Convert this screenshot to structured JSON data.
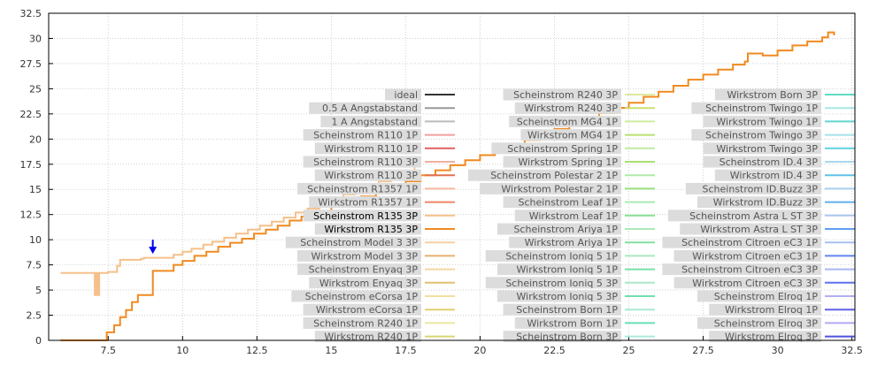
{
  "chart_data": {
    "type": "line",
    "title": "",
    "xlabel": "",
    "ylabel": "",
    "xlim": [
      5.5,
      32.6
    ],
    "ylim": [
      0,
      32.5
    ],
    "x_ticks": [
      7.5,
      10,
      12.5,
      15,
      17.5,
      20,
      22.5,
      25,
      27.5,
      30,
      32.5
    ],
    "x_tick_labels": [
      "7.5",
      "10",
      "12.5",
      "15",
      "17.5",
      "20",
      "22.5",
      "25",
      "27.5",
      "30",
      "32.5"
    ],
    "y_ticks": [
      0,
      2.5,
      5,
      7.5,
      10,
      12.5,
      15,
      17.5,
      20,
      22.5,
      25,
      27.5,
      30,
      32.5
    ],
    "y_tick_labels": [
      "0",
      "2.5",
      "5",
      "7.5",
      "10",
      "12.5",
      "15",
      "17.5",
      "20",
      "22.5",
      "25",
      "27.5",
      "30",
      "32.5"
    ],
    "grid": true,
    "legend_position": "right, three columns",
    "legend_columns": [
      [
        {
          "label": "ideal",
          "color": "#333333"
        },
        {
          "label": "0.5 A Angstabstand",
          "color": "#999999"
        },
        {
          "label": "1 A Angstabstand",
          "color": "#bbbbbb"
        },
        {
          "label": "Scheinstrom R110 1P",
          "color": "#f0a0a0"
        },
        {
          "label": "Wirkstrom R110 1P",
          "color": "#e06060"
        },
        {
          "label": "Scheinstrom R110 3P",
          "color": "#f0b0a0"
        },
        {
          "label": "Wirkstrom R110 3P",
          "color": "#e07050"
        },
        {
          "label": "Scheinstrom R1357 1P",
          "color": "#f5b8a0"
        },
        {
          "label": "Wirkstrom R1357 1P",
          "color": "#ee8866"
        },
        {
          "label": "Scheinstrom R135 3P",
          "color": "#f5c08a"
        },
        {
          "label": "Wirkstrom R135 3P",
          "color": "#f08a20"
        },
        {
          "label": "Scheinstrom Model 3 3P",
          "color": "#f5d0a0"
        },
        {
          "label": "Wirkstrom Model 3 3P",
          "color": "#e8b070"
        },
        {
          "label": "Scheinstrom Enyaq 3P",
          "color": "#f0d8a0"
        },
        {
          "label": "Wirkstrom Enyaq 3P",
          "color": "#e0c070"
        },
        {
          "label": "Scheinstrom eCorsa 1P",
          "color": "#f0e0a0"
        },
        {
          "label": "Wirkstrom eCorsa 1P",
          "color": "#e0d070"
        },
        {
          "label": "Scheinstrom R240 1P",
          "color": "#e8e8a0"
        },
        {
          "label": "Wirkstrom R240 1P",
          "color": "#d8d870"
        }
      ],
      [
        {
          "label": "Scheinstrom R240 3P",
          "color": "#e0eaa0"
        },
        {
          "label": "Wirkstrom R240 3P",
          "color": "#cce070"
        },
        {
          "label": "Scheinstrom MG4 1P",
          "color": "#d0eaa0"
        },
        {
          "label": "Wirkstrom MG4 1P",
          "color": "#b8e070"
        },
        {
          "label": "Scheinstrom Spring 1P",
          "color": "#c0eaa0"
        },
        {
          "label": "Wirkstrom Spring 1P",
          "color": "#a8e070"
        },
        {
          "label": "Scheinstrom Polestar 2 1P",
          "color": "#b0eaa8"
        },
        {
          "label": "Wirkstrom Polestar 2 1P",
          "color": "#98e080"
        },
        {
          "label": "Scheinstrom Leaf 1P",
          "color": "#a8eab0"
        },
        {
          "label": "Wirkstrom Leaf 1P",
          "color": "#88e090"
        },
        {
          "label": "Scheinstrom Ariya 1P",
          "color": "#a8eab8"
        },
        {
          "label": "Wirkstrom Ariya 1P",
          "color": "#80e0a0"
        },
        {
          "label": "Scheinstrom Ioniq 5 1P",
          "color": "#a8eac0"
        },
        {
          "label": "Wirkstrom Ioniq 5 1P",
          "color": "#78e0a8"
        },
        {
          "label": "Scheinstrom Ioniq 5 3P",
          "color": "#a8eac8"
        },
        {
          "label": "Wirkstrom Ioniq 5 3P",
          "color": "#70e0b0"
        },
        {
          "label": "Scheinstrom Born 1P",
          "color": "#a8ead0"
        },
        {
          "label": "Wirkstrom Born 1P",
          "color": "#68e0b8"
        },
        {
          "label": "Scheinstrom Born 3P",
          "color": "#a8eada"
        }
      ],
      [
        {
          "label": "Wirkstrom Born 3P",
          "color": "#60dcc0"
        },
        {
          "label": "Scheinstrom Twingo 1P",
          "color": "#a8e8e0"
        },
        {
          "label": "Wirkstrom Twingo 1P",
          "color": "#60d8d0"
        },
        {
          "label": "Scheinstrom Twingo 3P",
          "color": "#a8e0e8"
        },
        {
          "label": "Wirkstrom Twingo 3P",
          "color": "#60d0e0"
        },
        {
          "label": "Scheinstrom ID.4 3P",
          "color": "#a8d8ee"
        },
        {
          "label": "Wirkstrom ID.4 3P",
          "color": "#60c0e8"
        },
        {
          "label": "Scheinstrom ID.Buzz 3P",
          "color": "#a8d0f0"
        },
        {
          "label": "Wirkstrom ID.Buzz 3P",
          "color": "#60b0ea"
        },
        {
          "label": "Scheinstrom Astra L ST 3P",
          "color": "#a8c8f0"
        },
        {
          "label": "Wirkstrom Astra L ST 3P",
          "color": "#609ef0"
        },
        {
          "label": "Scheinstrom Citroen eC3 1P",
          "color": "#a8c0f0"
        },
        {
          "label": "Wirkstrom Citroen eC3 1P",
          "color": "#6088f0"
        },
        {
          "label": "Scheinstrom Citroen eC3 3P",
          "color": "#a8b8f0"
        },
        {
          "label": "Wirkstrom Citroen eC3 3P",
          "color": "#6070f0"
        },
        {
          "label": "Scheinstrom Elroq 1P",
          "color": "#b0b0f0"
        },
        {
          "label": "Wirkstrom Elroq 1P",
          "color": "#6060e8"
        },
        {
          "label": "Scheinstrom Elroq 3P",
          "color": "#b8a8f0"
        },
        {
          "label": "Wirkstrom Elroq 3P",
          "color": "#5050e0"
        }
      ]
    ],
    "highlighted_series": [
      "Scheinstrom R135 3P",
      "Wirkstrom R135 3P"
    ],
    "series": [
      {
        "name": "Scheinstrom R135 3P",
        "color": "#f5c08a",
        "x": [
          5.9,
          6.8,
          7.0,
          7.05,
          7.1,
          7.15,
          7.2,
          7.5,
          7.8,
          7.9,
          8.6,
          8.7,
          9.2,
          9.7,
          10.0,
          10.3,
          10.7,
          11.0,
          11.4,
          11.8,
          12.2,
          12.6,
          13.0,
          13.4,
          13.8,
          14.2,
          14.6,
          15.0,
          15.4,
          15.8,
          16.2,
          16.6,
          17.0,
          17.4,
          17.8
        ],
        "y": [
          6.7,
          6.7,
          6.7,
          4.5,
          6.7,
          4.5,
          6.7,
          6.8,
          7.4,
          8.0,
          8.1,
          8.2,
          8.2,
          8.5,
          8.8,
          9.1,
          9.5,
          9.8,
          10.2,
          10.6,
          11.0,
          11.4,
          11.8,
          12.2,
          12.7,
          13.1,
          13.6,
          14.0,
          14.5,
          14.9,
          15.4,
          15.8,
          16.3,
          16.7,
          17.2
        ]
      },
      {
        "name": "Wirkstrom R135 3P",
        "color": "#f08a20",
        "x": [
          5.9,
          7.4,
          7.45,
          7.7,
          7.9,
          8.1,
          8.3,
          8.5,
          8.9,
          9.0,
          9.5,
          9.7,
          10.0,
          10.4,
          10.8,
          11.2,
          11.6,
          12.0,
          12.4,
          12.8,
          13.2,
          13.6,
          14.0,
          14.5,
          15.0,
          15.5,
          16.0,
          16.5,
          17.0,
          17.5,
          18.0,
          18.5,
          19.0,
          19.5,
          20.0,
          20.5,
          21.0,
          21.5,
          22.0,
          22.5,
          23.0,
          23.5,
          24.0,
          24.5,
          25.0,
          25.5,
          26.0,
          26.5,
          27.0,
          27.5,
          28.0,
          28.5,
          28.9,
          29.0,
          29.5,
          30.0,
          30.5,
          31.0,
          31.5,
          31.7,
          31.9
        ],
        "y": [
          0,
          0,
          0.8,
          1.5,
          2.3,
          3.0,
          3.8,
          4.5,
          4.5,
          6.9,
          6.9,
          7.5,
          7.9,
          8.4,
          8.8,
          9.3,
          9.7,
          10.1,
          10.6,
          11.0,
          11.4,
          11.9,
          12.3,
          12.8,
          13.3,
          13.8,
          14.3,
          14.8,
          15.3,
          15.8,
          16.4,
          16.9,
          17.4,
          17.9,
          18.4,
          18.9,
          19.4,
          19.9,
          20.4,
          21.0,
          21.5,
          22.0,
          22.6,
          23.1,
          23.6,
          24.2,
          24.7,
          25.3,
          25.9,
          26.4,
          26.9,
          27.4,
          27.7,
          28.5,
          28.3,
          28.8,
          29.3,
          29.7,
          30.1,
          30.6,
          30.3
        ]
      }
    ],
    "annotations": [
      {
        "type": "arrow",
        "label": "",
        "x": 9.0,
        "y_from": 10.0,
        "y_to": 8.6,
        "color": "#0000ee"
      }
    ]
  }
}
